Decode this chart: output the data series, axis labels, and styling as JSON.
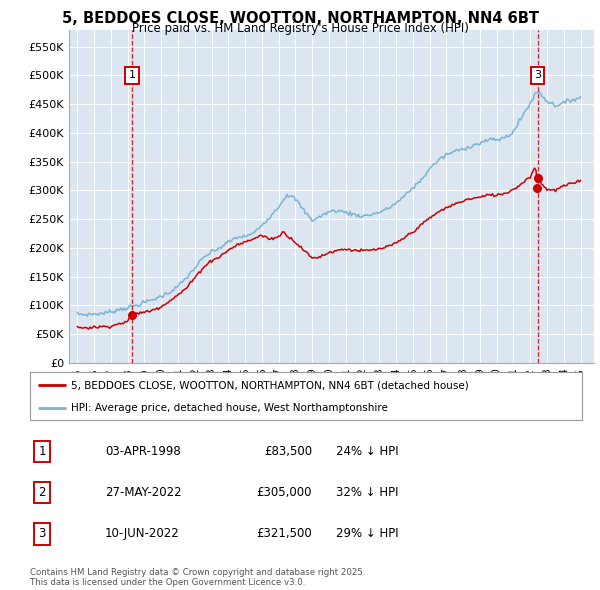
{
  "title": "5, BEDDOES CLOSE, WOOTTON, NORTHAMPTON, NN4 6BT",
  "subtitle": "Price paid vs. HM Land Registry's House Price Index (HPI)",
  "legend_line1": "5, BEDDOES CLOSE, WOOTTON, NORTHAMPTON, NN4 6BT (detached house)",
  "legend_line2": "HPI: Average price, detached house, West Northamptonshire",
  "background_color": "#ffffff",
  "plot_bg_color": "#dce6f1",
  "grid_color": "#ffffff",
  "hpi_color": "#7ab3d4",
  "price_color": "#cc0000",
  "annotation_color": "#cc0000",
  "purchases": [
    {
      "label": "1",
      "date_num": 1998.25,
      "price": 83500
    },
    {
      "label": "2",
      "date_num": 2022.38,
      "price": 305000
    },
    {
      "label": "3",
      "date_num": 2022.44,
      "price": 321500
    }
  ],
  "table_rows": [
    {
      "label": "1",
      "date": "03-APR-1998",
      "price": "£83,500",
      "pct": "24% ↓ HPI"
    },
    {
      "label": "2",
      "date": "27-MAY-2022",
      "price": "£305,000",
      "pct": "32% ↓ HPI"
    },
    {
      "label": "3",
      "date": "10-JUN-2022",
      "price": "£321,500",
      "pct": "29% ↓ HPI"
    }
  ],
  "footer": "Contains HM Land Registry data © Crown copyright and database right 2025.\nThis data is licensed under the Open Government Licence v3.0.",
  "ylim": [
    0,
    580000
  ],
  "yticks": [
    0,
    50000,
    100000,
    150000,
    200000,
    250000,
    300000,
    350000,
    400000,
    450000,
    500000,
    550000
  ],
  "ytick_labels": [
    "£0",
    "£50K",
    "£100K",
    "£150K",
    "£200K",
    "£250K",
    "£300K",
    "£350K",
    "£400K",
    "£450K",
    "£500K",
    "£550K"
  ],
  "xlim_start": 1994.5,
  "xlim_end": 2025.8,
  "xticks": [
    1995,
    1996,
    1997,
    1998,
    1999,
    2000,
    2001,
    2002,
    2003,
    2004,
    2005,
    2006,
    2007,
    2008,
    2009,
    2010,
    2011,
    2012,
    2013,
    2014,
    2015,
    2016,
    2017,
    2018,
    2019,
    2020,
    2021,
    2022,
    2023,
    2024,
    2025
  ],
  "hpi_key_points": [
    [
      1995.0,
      85000
    ],
    [
      1995.5,
      84000
    ],
    [
      1996.0,
      85000
    ],
    [
      1996.5,
      86000
    ],
    [
      1997.0,
      89000
    ],
    [
      1997.5,
      93000
    ],
    [
      1998.0,
      96000
    ],
    [
      1998.5,
      100000
    ],
    [
      1999.0,
      105000
    ],
    [
      1999.5,
      110000
    ],
    [
      2000.0,
      116000
    ],
    [
      2000.5,
      123000
    ],
    [
      2001.0,
      133000
    ],
    [
      2001.5,
      148000
    ],
    [
      2002.0,
      165000
    ],
    [
      2002.5,
      182000
    ],
    [
      2003.0,
      193000
    ],
    [
      2003.5,
      200000
    ],
    [
      2004.0,
      210000
    ],
    [
      2004.5,
      218000
    ],
    [
      2005.0,
      220000
    ],
    [
      2005.5,
      225000
    ],
    [
      2006.0,
      240000
    ],
    [
      2006.5,
      255000
    ],
    [
      2007.0,
      272000
    ],
    [
      2007.5,
      293000
    ],
    [
      2008.0,
      285000
    ],
    [
      2008.5,
      265000
    ],
    [
      2009.0,
      248000
    ],
    [
      2009.5,
      255000
    ],
    [
      2010.0,
      263000
    ],
    [
      2010.5,
      265000
    ],
    [
      2011.0,
      262000
    ],
    [
      2011.5,
      258000
    ],
    [
      2012.0,
      255000
    ],
    [
      2012.5,
      258000
    ],
    [
      2013.0,
      262000
    ],
    [
      2013.5,
      268000
    ],
    [
      2014.0,
      278000
    ],
    [
      2014.5,
      290000
    ],
    [
      2015.0,
      305000
    ],
    [
      2015.5,
      318000
    ],
    [
      2016.0,
      338000
    ],
    [
      2016.5,
      352000
    ],
    [
      2017.0,
      362000
    ],
    [
      2017.5,
      368000
    ],
    [
      2018.0,
      372000
    ],
    [
      2018.5,
      378000
    ],
    [
      2019.0,
      382000
    ],
    [
      2019.5,
      388000
    ],
    [
      2020.0,
      388000
    ],
    [
      2020.5,
      392000
    ],
    [
      2021.0,
      402000
    ],
    [
      2021.5,
      428000
    ],
    [
      2022.0,
      452000
    ],
    [
      2022.3,
      468000
    ],
    [
      2022.5,
      472000
    ],
    [
      2022.8,
      462000
    ],
    [
      2023.0,
      455000
    ],
    [
      2023.5,
      448000
    ],
    [
      2024.0,
      452000
    ],
    [
      2024.5,
      458000
    ],
    [
      2025.0,
      462000
    ]
  ],
  "red_key_points": [
    [
      1995.0,
      62000
    ],
    [
      1995.5,
      61000
    ],
    [
      1996.0,
      62000
    ],
    [
      1996.5,
      63000
    ],
    [
      1997.0,
      64000
    ],
    [
      1997.5,
      68000
    ],
    [
      1998.0,
      72000
    ],
    [
      1998.25,
      83500
    ],
    [
      1998.5,
      86000
    ],
    [
      1999.0,
      88000
    ],
    [
      1999.5,
      92000
    ],
    [
      2000.0,
      98000
    ],
    [
      2000.5,
      108000
    ],
    [
      2001.0,
      118000
    ],
    [
      2001.5,
      130000
    ],
    [
      2002.0,
      148000
    ],
    [
      2002.5,
      166000
    ],
    [
      2003.0,
      178000
    ],
    [
      2003.5,
      185000
    ],
    [
      2004.0,
      196000
    ],
    [
      2004.5,
      205000
    ],
    [
      2005.0,
      210000
    ],
    [
      2005.5,
      216000
    ],
    [
      2006.0,
      222000
    ],
    [
      2006.5,
      215000
    ],
    [
      2007.0,
      220000
    ],
    [
      2007.3,
      228000
    ],
    [
      2007.5,
      222000
    ],
    [
      2008.0,
      210000
    ],
    [
      2008.5,
      196000
    ],
    [
      2009.0,
      182000
    ],
    [
      2009.5,
      185000
    ],
    [
      2010.0,
      192000
    ],
    [
      2010.5,
      196000
    ],
    [
      2011.0,
      198000
    ],
    [
      2011.5,
      196000
    ],
    [
      2012.0,
      195000
    ],
    [
      2012.5,
      196000
    ],
    [
      2013.0,
      198000
    ],
    [
      2013.5,
      202000
    ],
    [
      2014.0,
      208000
    ],
    [
      2014.5,
      218000
    ],
    [
      2015.0,
      228000
    ],
    [
      2015.5,
      240000
    ],
    [
      2016.0,
      252000
    ],
    [
      2016.5,
      262000
    ],
    [
      2017.0,
      270000
    ],
    [
      2017.5,
      276000
    ],
    [
      2018.0,
      282000
    ],
    [
      2018.5,
      286000
    ],
    [
      2019.0,
      288000
    ],
    [
      2019.5,
      292000
    ],
    [
      2020.0,
      292000
    ],
    [
      2020.5,
      295000
    ],
    [
      2021.0,
      302000
    ],
    [
      2021.5,
      312000
    ],
    [
      2022.0,
      325000
    ],
    [
      2022.3,
      340000
    ],
    [
      2022.35,
      335000
    ],
    [
      2022.38,
      305000
    ],
    [
      2022.44,
      321500
    ],
    [
      2022.5,
      318000
    ],
    [
      2022.8,
      308000
    ],
    [
      2023.0,
      302000
    ],
    [
      2023.5,
      300000
    ],
    [
      2024.0,
      308000
    ],
    [
      2024.5,
      312000
    ],
    [
      2025.0,
      318000
    ]
  ]
}
